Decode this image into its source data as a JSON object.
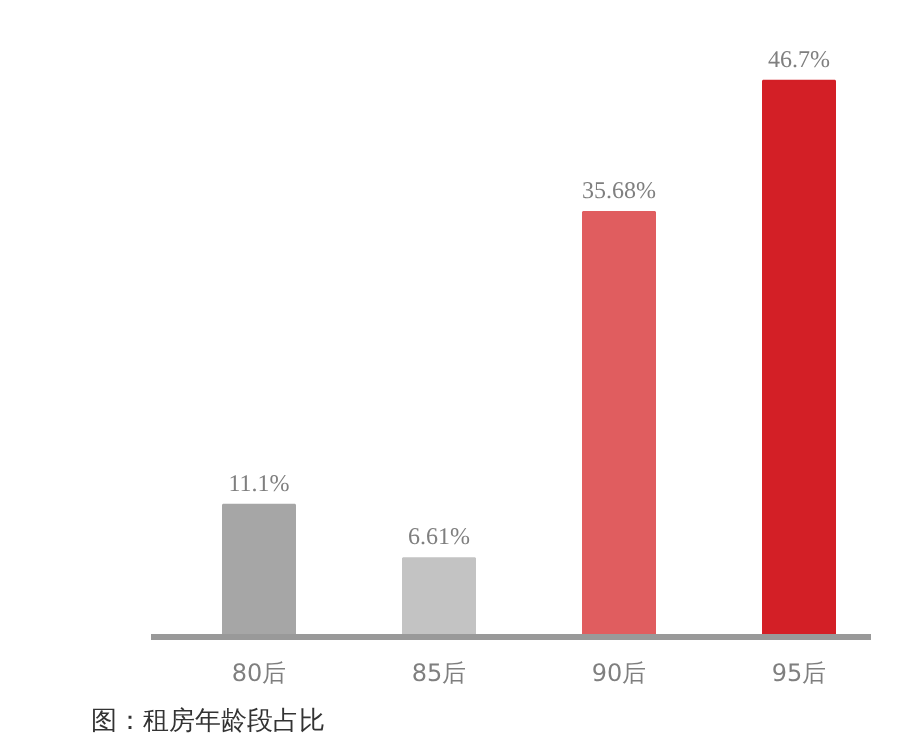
{
  "chart_data": {
    "type": "bar",
    "categories": [
      "80后",
      "85后",
      "90后",
      "95后"
    ],
    "values": [
      11.1,
      6.61,
      35.68,
      46.7
    ],
    "colors": [
      "#a6a6a6",
      "#c3c3c3",
      "#e05d5f",
      "#d31f26"
    ],
    "value_labels": [
      "11.1%",
      "6.61%",
      "35.68%",
      "46.7%"
    ],
    "annotations": [
      "图：租房年龄段占比"
    ],
    "grid": false
  }
}
